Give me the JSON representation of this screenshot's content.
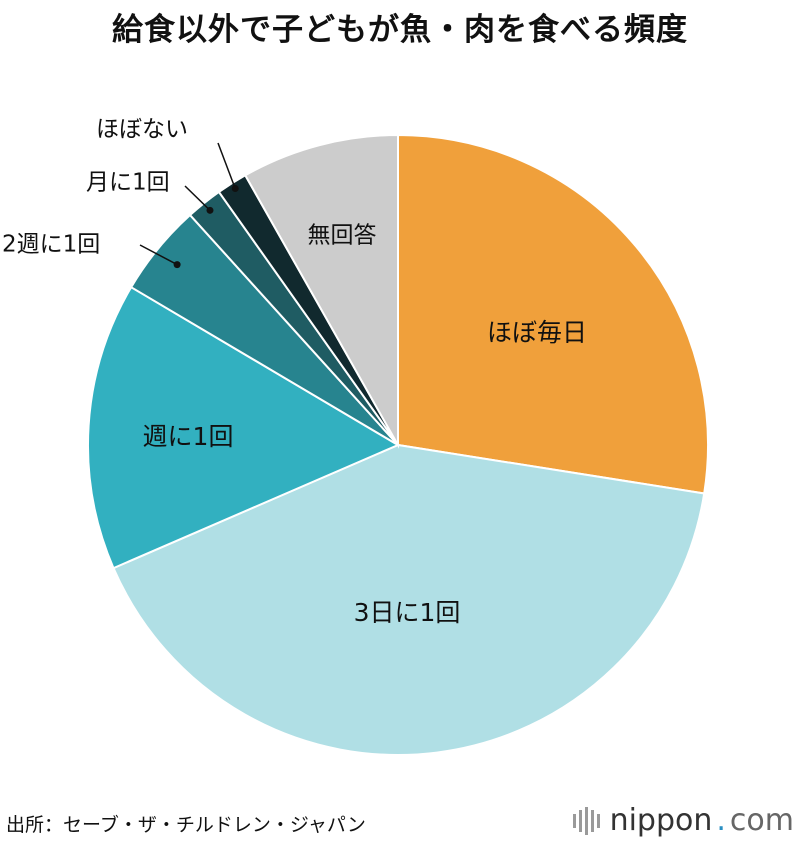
{
  "chart_data": {
    "type": "pie",
    "title": "給食以外で子どもが魚・肉を食べる頻度",
    "slices": [
      {
        "label": "ほぼ毎日",
        "value": 27.5,
        "color": "#f0a03b"
      },
      {
        "label": "3日に1回",
        "value": 41.0,
        "color": "#b0dfe5"
      },
      {
        "label": "週に1回",
        "value": 15.0,
        "color": "#32b0c0"
      },
      {
        "label": "2週に1回",
        "value": 4.8,
        "color": "#27848f"
      },
      {
        "label": "月に1回",
        "value": 1.9,
        "color": "#1f5c63"
      },
      {
        "label": "ほぼない",
        "value": 1.6,
        "color": "#11292e"
      },
      {
        "label": "無回答",
        "value": 8.2,
        "color": "#cccccc"
      }
    ]
  },
  "footer": {
    "source": "出所：セーブ・ザ・チルドレン・ジャパン",
    "brand_name": "nippon",
    "brand_dot": ".",
    "brand_com": "com"
  }
}
